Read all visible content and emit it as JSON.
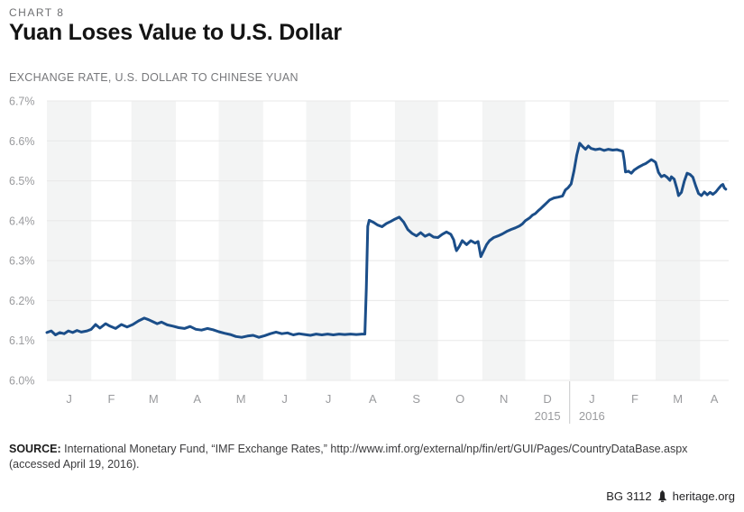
{
  "header": {
    "chart_number": "CHART 8",
    "title": "Yuan Loses Value to U.S. Dollar",
    "subtitle": "EXCHANGE RATE, U.S. DOLLAR TO CHINESE YUAN"
  },
  "chart_data": {
    "type": "line",
    "title": "Yuan Loses Value to U.S. Dollar",
    "subtitle": "Exchange rate, U.S. dollar to Chinese yuan",
    "ylim": [
      6.0,
      6.7
    ],
    "grid": true,
    "legend": "none",
    "y_ticks": [
      {
        "label": "6.7%",
        "value": 6.7
      },
      {
        "label": "6.6%",
        "value": 6.6
      },
      {
        "label": "6.5%",
        "value": 6.5
      },
      {
        "label": "6.4%",
        "value": 6.4
      },
      {
        "label": "6.3%",
        "value": 6.3
      },
      {
        "label": "6.2%",
        "value": 6.2
      },
      {
        "label": "6.1%",
        "value": 6.1
      },
      {
        "label": "6.0%",
        "value": 6.0
      }
    ],
    "months": [
      {
        "label": "J",
        "days": 31,
        "shaded": true
      },
      {
        "label": "F",
        "days": 28,
        "shaded": false
      },
      {
        "label": "M",
        "days": 31,
        "shaded": true
      },
      {
        "label": "A",
        "days": 30,
        "shaded": false
      },
      {
        "label": "M",
        "days": 31,
        "shaded": true
      },
      {
        "label": "J",
        "days": 30,
        "shaded": false
      },
      {
        "label": "J",
        "days": 31,
        "shaded": true
      },
      {
        "label": "A",
        "days": 31,
        "shaded": false
      },
      {
        "label": "S",
        "days": 30,
        "shaded": true
      },
      {
        "label": "O",
        "days": 31,
        "shaded": false
      },
      {
        "label": "N",
        "days": 30,
        "shaded": true
      },
      {
        "label": "D",
        "days": 31,
        "shaded": false
      },
      {
        "label": "J",
        "days": 31,
        "shaded": true
      },
      {
        "label": "F",
        "days": 29,
        "shaded": false
      },
      {
        "label": "M",
        "days": 31,
        "shaded": true
      },
      {
        "label": "A",
        "days": 20,
        "shaded": false
      }
    ],
    "year_labels": [
      {
        "label": "2015",
        "month_index": 11
      },
      {
        "label": "2016",
        "month_index": 12
      }
    ],
    "colors": {
      "line": "#1b4e89",
      "band": "#f3f4f4",
      "grid": "#e8e8e8",
      "axis_text": "#9a9b9e",
      "divider": "#c8c9ca"
    },
    "series": [
      {
        "name": "U.S. dollar to Chinese yuan exchange rate",
        "points": [
          [
            0,
            6.12
          ],
          [
            3,
            6.124
          ],
          [
            6,
            6.114
          ],
          [
            9,
            6.12
          ],
          [
            12,
            6.117
          ],
          [
            15,
            6.124
          ],
          [
            18,
            6.12
          ],
          [
            21,
            6.125
          ],
          [
            24,
            6.121
          ],
          [
            28,
            6.124
          ],
          [
            31,
            6.128
          ],
          [
            34,
            6.14
          ],
          [
            37,
            6.131
          ],
          [
            41,
            6.142
          ],
          [
            44,
            6.136
          ],
          [
            48,
            6.13
          ],
          [
            52,
            6.14
          ],
          [
            56,
            6.134
          ],
          [
            60,
            6.14
          ],
          [
            64,
            6.149
          ],
          [
            68,
            6.156
          ],
          [
            71,
            6.152
          ],
          [
            74,
            6.147
          ],
          [
            77,
            6.142
          ],
          [
            80,
            6.146
          ],
          [
            84,
            6.139
          ],
          [
            88,
            6.136
          ],
          [
            92,
            6.132
          ],
          [
            96,
            6.13
          ],
          [
            100,
            6.135
          ],
          [
            104,
            6.128
          ],
          [
            108,
            6.126
          ],
          [
            112,
            6.13
          ],
          [
            116,
            6.127
          ],
          [
            120,
            6.122
          ],
          [
            124,
            6.118
          ],
          [
            128,
            6.115
          ],
          [
            132,
            6.11
          ],
          [
            136,
            6.108
          ],
          [
            140,
            6.111
          ],
          [
            144,
            6.113
          ],
          [
            148,
            6.108
          ],
          [
            152,
            6.112
          ],
          [
            156,
            6.117
          ],
          [
            160,
            6.121
          ],
          [
            164,
            6.117
          ],
          [
            168,
            6.119
          ],
          [
            172,
            6.114
          ],
          [
            176,
            6.117
          ],
          [
            180,
            6.115
          ],
          [
            184,
            6.113
          ],
          [
            188,
            6.116
          ],
          [
            192,
            6.114
          ],
          [
            196,
            6.116
          ],
          [
            200,
            6.114
          ],
          [
            204,
            6.116
          ],
          [
            208,
            6.115
          ],
          [
            212,
            6.116
          ],
          [
            216,
            6.115
          ],
          [
            220,
            6.116
          ],
          [
            222,
            6.116
          ],
          [
            223,
            6.23
          ],
          [
            224,
            6.386
          ],
          [
            225,
            6.401
          ],
          [
            228,
            6.396
          ],
          [
            231,
            6.389
          ],
          [
            234,
            6.385
          ],
          [
            237,
            6.393
          ],
          [
            240,
            6.398
          ],
          [
            243,
            6.404
          ],
          [
            246,
            6.409
          ],
          [
            249,
            6.397
          ],
          [
            252,
            6.378
          ],
          [
            255,
            6.368
          ],
          [
            258,
            6.362
          ],
          [
            261,
            6.37
          ],
          [
            264,
            6.361
          ],
          [
            267,
            6.366
          ],
          [
            270,
            6.359
          ],
          [
            273,
            6.358
          ],
          [
            276,
            6.366
          ],
          [
            279,
            6.372
          ],
          [
            282,
            6.366
          ],
          [
            284,
            6.352
          ],
          [
            285,
            6.337
          ],
          [
            286,
            6.325
          ],
          [
            288,
            6.336
          ],
          [
            290,
            6.35
          ],
          [
            293,
            6.34
          ],
          [
            296,
            6.35
          ],
          [
            299,
            6.344
          ],
          [
            301,
            6.348
          ],
          [
            302,
            6.33
          ],
          [
            303,
            6.31
          ],
          [
            305,
            6.325
          ],
          [
            307,
            6.34
          ],
          [
            309,
            6.35
          ],
          [
            312,
            6.358
          ],
          [
            315,
            6.362
          ],
          [
            318,
            6.367
          ],
          [
            321,
            6.373
          ],
          [
            324,
            6.378
          ],
          [
            327,
            6.382
          ],
          [
            330,
            6.387
          ],
          [
            332,
            6.392
          ],
          [
            334,
            6.4
          ],
          [
            337,
            6.407
          ],
          [
            339,
            6.414
          ],
          [
            341,
            6.418
          ],
          [
            343,
            6.425
          ],
          [
            345,
            6.431
          ],
          [
            347,
            6.438
          ],
          [
            349,
            6.445
          ],
          [
            351,
            6.452
          ],
          [
            354,
            6.457
          ],
          [
            357,
            6.459
          ],
          [
            360,
            6.462
          ],
          [
            362,
            6.477
          ],
          [
            364,
            6.483
          ],
          [
            366,
            6.492
          ],
          [
            368,
            6.525
          ],
          [
            370,
            6.565
          ],
          [
            372,
            6.594
          ],
          [
            374,
            6.586
          ],
          [
            376,
            6.579
          ],
          [
            378,
            6.587
          ],
          [
            380,
            6.581
          ],
          [
            383,
            6.578
          ],
          [
            386,
            6.58
          ],
          [
            389,
            6.576
          ],
          [
            392,
            6.579
          ],
          [
            395,
            6.577
          ],
          [
            398,
            6.578
          ],
          [
            400,
            6.576
          ],
          [
            402,
            6.574
          ],
          [
            403,
            6.552
          ],
          [
            404,
            6.522
          ],
          [
            406,
            6.524
          ],
          [
            408,
            6.519
          ],
          [
            410,
            6.527
          ],
          [
            413,
            6.534
          ],
          [
            416,
            6.54
          ],
          [
            418,
            6.543
          ],
          [
            420,
            6.548
          ],
          [
            422,
            6.553
          ],
          [
            424,
            6.549
          ],
          [
            425,
            6.546
          ],
          [
            427,
            6.521
          ],
          [
            429,
            6.51
          ],
          [
            431,
            6.514
          ],
          [
            433,
            6.509
          ],
          [
            435,
            6.501
          ],
          [
            436,
            6.51
          ],
          [
            438,
            6.504
          ],
          [
            440,
            6.479
          ],
          [
            441,
            6.463
          ],
          [
            443,
            6.471
          ],
          [
            445,
            6.499
          ],
          [
            447,
            6.519
          ],
          [
            449,
            6.516
          ],
          [
            451,
            6.509
          ],
          [
            453,
            6.487
          ],
          [
            455,
            6.468
          ],
          [
            457,
            6.463
          ],
          [
            459,
            6.472
          ],
          [
            461,
            6.465
          ],
          [
            463,
            6.471
          ],
          [
            465,
            6.466
          ],
          [
            467,
            6.472
          ],
          [
            469,
            6.481
          ],
          [
            471,
            6.489
          ],
          [
            472,
            6.491
          ],
          [
            473,
            6.482
          ],
          [
            474,
            6.479
          ]
        ]
      }
    ]
  },
  "footer": {
    "source_label": "SOURCE:",
    "source_line1": "International Monetary Fund, “IMF Exchange Rates,” http://www.imf.org/external/np/fin/ert/GUI/Pages/CountryDataBase.aspx",
    "source_line2": "(accessed April 19, 2016).",
    "report_id": "BG 3112",
    "site": "heritage.org",
    "bell_icon": "heritage-bell"
  }
}
